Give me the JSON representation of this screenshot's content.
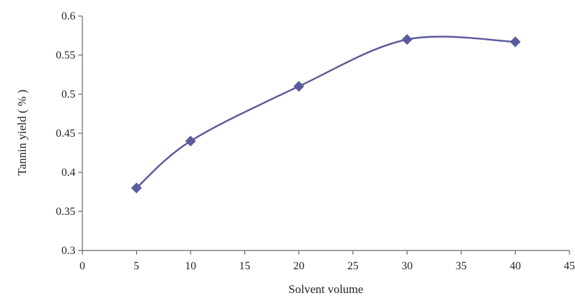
{
  "chart_data": {
    "type": "line",
    "title": "",
    "xlabel": "Solvent volume",
    "ylabel": "Tannin yield ( % )",
    "xlim": [
      0,
      45
    ],
    "ylim": [
      0.3,
      0.6
    ],
    "xticks": [
      0,
      5,
      10,
      15,
      20,
      25,
      30,
      35,
      40,
      45
    ],
    "xtick_labels": [
      "0",
      "5",
      "10",
      "15",
      "20",
      "25",
      "30",
      "35",
      "40",
      "45"
    ],
    "yticks": [
      0.3,
      0.35,
      0.4,
      0.45,
      0.5,
      0.55,
      0.6
    ],
    "ytick_labels": [
      "0.3",
      "0.35",
      "0.4",
      "0.45",
      "0.5",
      "0.55",
      "0.6"
    ],
    "grid": false,
    "legend": false,
    "smoothed": true,
    "marker": "diamond",
    "color": "#5a5a9c",
    "series": [
      {
        "x": [
          5,
          10,
          20,
          30,
          40
        ],
        "y": [
          0.38,
          0.44,
          0.51,
          0.57,
          0.567
        ]
      }
    ]
  }
}
